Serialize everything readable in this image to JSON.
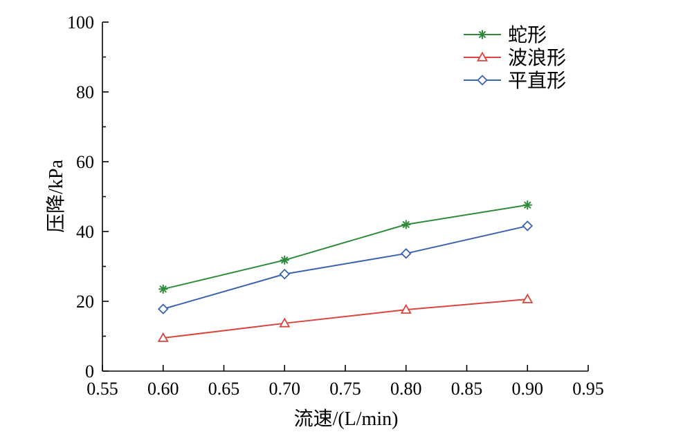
{
  "chart_data": {
    "type": "line",
    "xlabel": "流速/(L/min)",
    "ylabel": "压降/kPa",
    "xlim": [
      0.55,
      0.95
    ],
    "ylim": [
      0,
      100
    ],
    "xticks": [
      "0.55",
      "0.60",
      "0.65",
      "0.70",
      "0.75",
      "0.80",
      "0.85",
      "0.90",
      "0.95"
    ],
    "yticks": [
      "0",
      "20",
      "40",
      "60",
      "80",
      "100"
    ],
    "grid": false,
    "legend_position": "top-right",
    "x": [
      0.6,
      0.7,
      0.8,
      0.9
    ],
    "series": [
      {
        "name": "蛇形",
        "values": [
          23.5,
          31.8,
          42.0,
          47.6
        ],
        "color": "#2e8b3a",
        "marker": "asterisk"
      },
      {
        "name": "波浪形",
        "values": [
          9.5,
          13.7,
          17.6,
          20.6
        ],
        "color": "#d9453d",
        "marker": "triangle"
      },
      {
        "name": "平直形",
        "values": [
          17.8,
          27.8,
          33.7,
          41.6
        ],
        "color": "#3b62b0",
        "marker": "diamond"
      }
    ]
  }
}
